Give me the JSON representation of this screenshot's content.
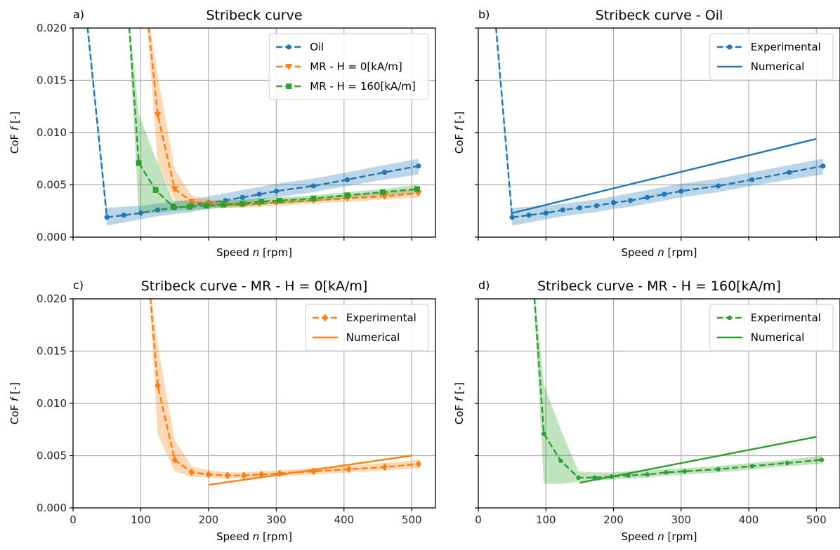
{
  "chart_data": [
    {
      "panel_label": "a)",
      "title": "Stribeck curve",
      "type": "line",
      "xlabel_prefix": "Speed ",
      "xlabel_var": "n",
      "xlabel_suffix": " [rpm]",
      "ylabel_prefix": "CoF ",
      "ylabel_var": "f",
      "ylabel_suffix": " [-]",
      "xlim": [
        0,
        535
      ],
      "ylim": [
        0,
        0.02
      ],
      "xticks": [
        0,
        100,
        200,
        300,
        400,
        500
      ],
      "yticks": [
        0,
        0.005,
        0.01,
        0.015,
        0.02
      ],
      "show_xticklabels": false,
      "show_yticklabels": true,
      "grid": true,
      "legend_position": "top-right",
      "series": [
        {
          "name": "Oil",
          "color": "#1f77b4",
          "marker": "circle",
          "style": "dashed",
          "x": [
            20,
            50,
            75,
            100,
            125,
            150,
            175,
            200,
            225,
            250,
            275,
            300,
            355,
            405,
            460,
            510
          ],
          "y": [
            0.021,
            0.0019,
            0.0021,
            0.0023,
            0.0026,
            0.0028,
            0.003,
            0.0033,
            0.0035,
            0.0038,
            0.0041,
            0.0044,
            0.0049,
            0.0055,
            0.0062,
            0.0068
          ],
          "band_lo": [
            0.02,
            0.0011,
            0.0014,
            0.0017,
            0.002,
            0.0022,
            0.0024,
            0.0027,
            0.0029,
            0.0032,
            0.0035,
            0.0038,
            0.0043,
            0.0049,
            0.0055,
            0.006
          ],
          "band_hi": [
            0.0215,
            0.0028,
            0.0029,
            0.003,
            0.0032,
            0.0034,
            0.0036,
            0.0039,
            0.0042,
            0.0045,
            0.0048,
            0.0051,
            0.0056,
            0.0062,
            0.0069,
            0.0075
          ]
        },
        {
          "name": "MR - H = 0[kA/m]",
          "color": "#ff7f0e",
          "marker": "triangle-down",
          "style": "dashed",
          "x": [
            110,
            125,
            150,
            175,
            200,
            225,
            250,
            275,
            300,
            355,
            405,
            460,
            510
          ],
          "y": [
            0.021,
            0.0117,
            0.0046,
            0.0034,
            0.0032,
            0.0031,
            0.0031,
            0.0032,
            0.0033,
            0.0035,
            0.0037,
            0.0039,
            0.0042
          ],
          "band_lo": [
            0.02,
            0.007,
            0.0035,
            0.003,
            0.0029,
            0.0028,
            0.0028,
            0.0029,
            0.003,
            0.0032,
            0.0034,
            0.0036,
            0.0038
          ],
          "band_hi": [
            0.0215,
            0.0155,
            0.0065,
            0.004,
            0.0036,
            0.0034,
            0.0034,
            0.0035,
            0.0036,
            0.0038,
            0.004,
            0.0043,
            0.0046
          ]
        },
        {
          "name": "MR - H = 160[kA/m]",
          "color": "#2ca02c",
          "marker": "square",
          "style": "dashed",
          "x": [
            82,
            97,
            122,
            148,
            172,
            197,
            222,
            250,
            278,
            305,
            355,
            405,
            457,
            508
          ],
          "y": [
            0.021,
            0.0071,
            0.0045,
            0.0029,
            0.0029,
            0.003,
            0.0031,
            0.0032,
            0.0034,
            0.0035,
            0.0037,
            0.004,
            0.0043,
            0.0046
          ],
          "band_lo": [
            0.02,
            0.0023,
            0.0023,
            0.0025,
            0.0026,
            0.0027,
            0.0028,
            0.0029,
            0.0031,
            0.0032,
            0.0034,
            0.0037,
            0.004,
            0.0042
          ],
          "band_hi": [
            0.0215,
            0.0118,
            0.0075,
            0.0035,
            0.0034,
            0.0034,
            0.0035,
            0.0036,
            0.0037,
            0.0038,
            0.004,
            0.0043,
            0.0046,
            0.005
          ]
        }
      ]
    },
    {
      "panel_label": "b)",
      "title": "Stribeck curve - Oil",
      "type": "line",
      "xlabel_prefix": "Speed ",
      "xlabel_var": "n",
      "xlabel_suffix": " [rpm]",
      "ylabel_prefix": "CoF ",
      "ylabel_var": "f",
      "ylabel_suffix": " [-]",
      "xlim": [
        0,
        535
      ],
      "ylim": [
        0,
        0.02
      ],
      "xticks": [
        0,
        100,
        200,
        300,
        400,
        500
      ],
      "yticks": [
        0,
        0.005,
        0.01,
        0.015,
        0.02
      ],
      "show_xticklabels": false,
      "show_yticklabels": false,
      "grid": true,
      "legend_position": "top-right",
      "series": [
        {
          "name": "Experimental",
          "color": "#1f77b4",
          "marker": "circle",
          "style": "dashed",
          "x": [
            25,
            50,
            75,
            100,
            125,
            150,
            175,
            200,
            225,
            250,
            275,
            300,
            355,
            405,
            460,
            510
          ],
          "y": [
            0.021,
            0.0019,
            0.0021,
            0.0023,
            0.0026,
            0.0028,
            0.003,
            0.0033,
            0.0035,
            0.0038,
            0.0041,
            0.0044,
            0.0049,
            0.0055,
            0.0062,
            0.0068
          ],
          "band_lo": [
            0.02,
            0.0011,
            0.0014,
            0.0017,
            0.002,
            0.0022,
            0.0024,
            0.0027,
            0.0029,
            0.0032,
            0.0035,
            0.0038,
            0.0043,
            0.0049,
            0.0055,
            0.006
          ],
          "band_hi": [
            0.0215,
            0.0028,
            0.0029,
            0.003,
            0.0032,
            0.0034,
            0.0036,
            0.0039,
            0.0042,
            0.0045,
            0.0048,
            0.0051,
            0.0056,
            0.0062,
            0.0069,
            0.0075
          ]
        },
        {
          "name": "Numerical",
          "color": "#1f77b4",
          "marker": "none",
          "style": "solid",
          "x": [
            50,
            500
          ],
          "y": [
            0.0023,
            0.0094
          ]
        }
      ]
    },
    {
      "panel_label": "c)",
      "title": "Stribeck curve - MR - H = 0[kA/m]",
      "type": "line",
      "xlabel_prefix": "Speed ",
      "xlabel_var": "n",
      "xlabel_suffix": " [rpm]",
      "ylabel_prefix": "CoF ",
      "ylabel_var": "f",
      "ylabel_suffix": " [-]",
      "xlim": [
        0,
        535
      ],
      "ylim": [
        0,
        0.02
      ],
      "xticks": [
        0,
        100,
        200,
        300,
        400,
        500
      ],
      "yticks": [
        0,
        0.005,
        0.01,
        0.015,
        0.02
      ],
      "show_xticklabels": true,
      "show_yticklabels": true,
      "grid": true,
      "legend_position": "top-right",
      "series": [
        {
          "name": "Experimental",
          "color": "#ff7f0e",
          "marker": "diamond",
          "style": "dashed",
          "x": [
            113,
            125,
            150,
            175,
            200,
            228,
            252,
            278,
            305,
            355,
            407,
            460,
            510
          ],
          "y": [
            0.021,
            0.0117,
            0.0046,
            0.0034,
            0.0032,
            0.0031,
            0.0031,
            0.0032,
            0.0033,
            0.0035,
            0.0037,
            0.0039,
            0.0042
          ],
          "band_lo": [
            0.02,
            0.007,
            0.0035,
            0.003,
            0.0029,
            0.0028,
            0.0028,
            0.0029,
            0.003,
            0.0032,
            0.0034,
            0.0036,
            0.0038
          ],
          "band_hi": [
            0.0215,
            0.0155,
            0.0065,
            0.004,
            0.0036,
            0.0034,
            0.0034,
            0.0035,
            0.0036,
            0.0038,
            0.004,
            0.0043,
            0.0046
          ]
        },
        {
          "name": "Numerical",
          "color": "#ff7f0e",
          "marker": "none",
          "style": "solid",
          "x": [
            200,
            500
          ],
          "y": [
            0.0022,
            0.005
          ]
        }
      ]
    },
    {
      "panel_label": "d)",
      "title": "Stribeck curve - MR - H = 160[kA/m]",
      "type": "line",
      "xlabel_prefix": "Speed ",
      "xlabel_var": "n",
      "xlabel_suffix": " [rpm]",
      "ylabel_prefix": "CoF ",
      "ylabel_var": "f",
      "ylabel_suffix": " [-]",
      "xlim": [
        0,
        535
      ],
      "ylim": [
        0,
        0.02
      ],
      "xticks": [
        0,
        100,
        200,
        300,
        400,
        500
      ],
      "yticks": [
        0,
        0.005,
        0.01,
        0.015,
        0.02
      ],
      "show_xticklabels": true,
      "show_yticklabels": false,
      "grid": true,
      "legend_position": "top-right",
      "series": [
        {
          "name": "Experimental",
          "color": "#2ca02c",
          "marker": "pentagon",
          "style": "dashed",
          "x": [
            82,
            97,
            122,
            148,
            172,
            197,
            222,
            250,
            278,
            305,
            355,
            405,
            457,
            508
          ],
          "y": [
            0.021,
            0.0071,
            0.0045,
            0.0029,
            0.0029,
            0.003,
            0.0031,
            0.0032,
            0.0034,
            0.0035,
            0.0037,
            0.004,
            0.0043,
            0.0046
          ],
          "band_lo": [
            0.02,
            0.0023,
            0.0023,
            0.0025,
            0.0026,
            0.0027,
            0.0028,
            0.0029,
            0.0031,
            0.0032,
            0.0034,
            0.0037,
            0.004,
            0.0042
          ],
          "band_hi": [
            0.0215,
            0.0118,
            0.0075,
            0.0035,
            0.0034,
            0.0034,
            0.0035,
            0.0036,
            0.0037,
            0.0038,
            0.004,
            0.0043,
            0.0046,
            0.005
          ]
        },
        {
          "name": "Numerical",
          "color": "#2ca02c",
          "marker": "none",
          "style": "solid",
          "x": [
            150,
            500
          ],
          "y": [
            0.0024,
            0.0068
          ]
        }
      ]
    }
  ]
}
